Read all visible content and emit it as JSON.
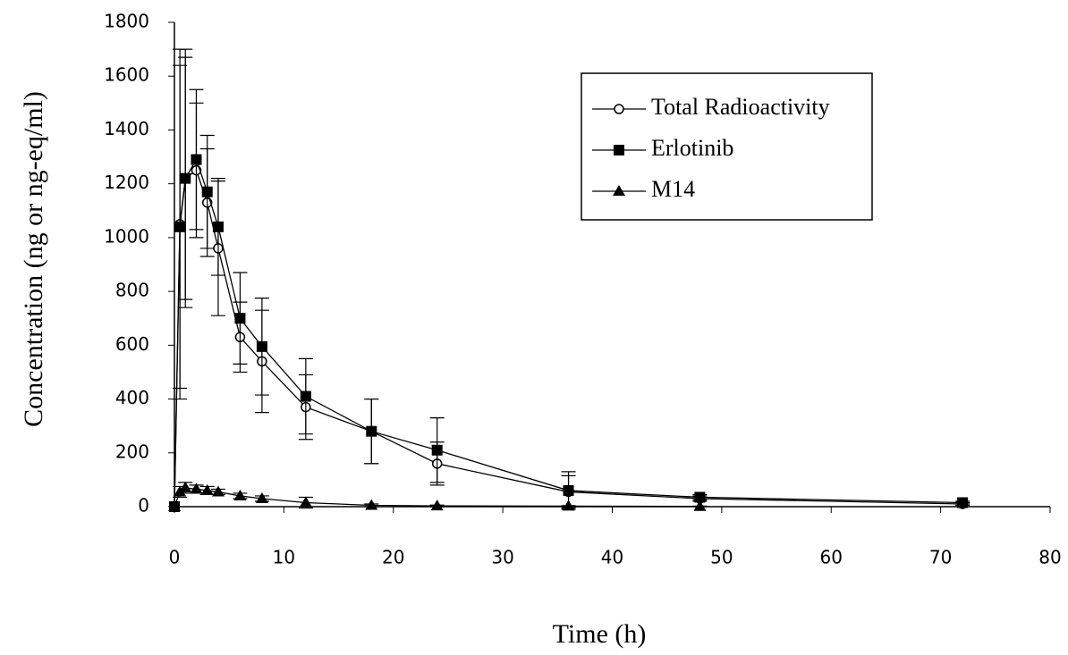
{
  "chart_data": {
    "type": "line",
    "x_label": "Time (h)",
    "y_label": "Concentration (ng or ng-eq/ml)",
    "xlim": [
      0,
      80
    ],
    "ylim": [
      0,
      1800
    ],
    "xticks": [
      0,
      10,
      20,
      30,
      40,
      50,
      60,
      70,
      80
    ],
    "yticks": [
      0,
      200,
      400,
      600,
      800,
      1000,
      1200,
      1400,
      1600,
      1800
    ],
    "grid": false,
    "legend": "upper right",
    "x": [
      0,
      0.5,
      1,
      2,
      3,
      4,
      6,
      8,
      12,
      18,
      24,
      36,
      48,
      72
    ],
    "series": [
      {
        "name": "Total Radioactivity",
        "color": "#000000",
        "marker": "open-circle",
        "values": [
          0,
          1050,
          1220,
          1250,
          1130,
          960,
          630,
          540,
          370,
          280,
          160,
          55,
          30,
          10
        ],
        "errors": [
          0,
          650,
          450,
          250,
          200,
          250,
          130,
          190,
          120,
          120,
          80,
          60,
          10,
          5
        ]
      },
      {
        "name": "Erlotinib",
        "color": "#000000",
        "marker": "filled-square",
        "values": [
          0,
          1040,
          1220,
          1290,
          1170,
          1040,
          700,
          595,
          410,
          280,
          210,
          60,
          35,
          15
        ],
        "errors": [
          0,
          600,
          480,
          260,
          210,
          180,
          170,
          180,
          140,
          120,
          120,
          70,
          10,
          5
        ]
      },
      {
        "name": "M14",
        "color": "#000000",
        "marker": "filled-triangle",
        "values": [
          0,
          55,
          70,
          65,
          60,
          55,
          40,
          30,
          15,
          5,
          3,
          2,
          1,
          null
        ],
        "errors": [
          0,
          20,
          20,
          15,
          15,
          10,
          10,
          10,
          20,
          5,
          3,
          2,
          1,
          null
        ]
      }
    ]
  }
}
